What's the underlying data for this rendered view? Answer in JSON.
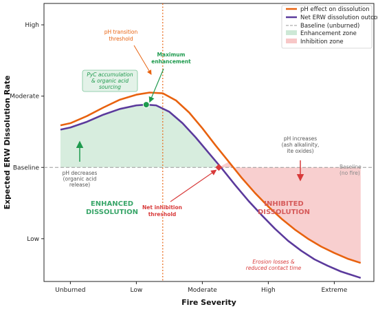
{
  "chart_data": {
    "type": "line",
    "title": "",
    "xlabel": "Fire Severity",
    "ylabel": "Expected ERW Dissolution Rate",
    "x_categories": [
      "Unburned",
      "Low",
      "Moderate",
      "High",
      "Extreme"
    ],
    "y_categories": [
      "Low",
      "Baseline",
      "Moderate",
      "High"
    ],
    "xlim": [
      -0.4,
      4.6
    ],
    "ylim": [
      -0.6,
      3.3
    ],
    "grid": false,
    "legend_position": "top-right",
    "baseline_value": 1,
    "series": [
      {
        "name": "pH effect on dissolution",
        "color": "#e8620f",
        "x": [
          -0.15,
          0.0,
          0.25,
          0.5,
          0.75,
          1.0,
          1.2,
          1.4,
          1.6,
          1.8,
          2.0,
          2.2,
          2.4,
          2.6,
          2.8,
          3.0,
          3.2,
          3.4,
          3.6,
          3.8,
          4.0,
          4.2,
          4.4
        ],
        "y": [
          1.59,
          1.62,
          1.72,
          1.84,
          1.95,
          2.02,
          2.05,
          2.04,
          1.94,
          1.77,
          1.55,
          1.31,
          1.08,
          0.85,
          0.64,
          0.45,
          0.28,
          0.13,
          0.0,
          -0.11,
          -0.2,
          -0.28,
          -0.34
        ]
      },
      {
        "name": "Net ERW dissolution outcome",
        "color": "#5b3a9c",
        "x": [
          -0.15,
          0.0,
          0.25,
          0.5,
          0.75,
          1.0,
          1.15,
          1.3,
          1.5,
          1.7,
          1.9,
          2.1,
          2.3,
          2.5,
          2.7,
          2.9,
          3.1,
          3.3,
          3.5,
          3.7,
          3.9,
          4.1,
          4.4
        ],
        "y": [
          1.53,
          1.56,
          1.64,
          1.74,
          1.82,
          1.87,
          1.88,
          1.87,
          1.78,
          1.62,
          1.42,
          1.2,
          0.98,
          0.75,
          0.53,
          0.33,
          0.14,
          -0.03,
          -0.17,
          -0.29,
          -0.38,
          -0.46,
          -0.55
        ]
      },
      {
        "name": "Baseline (unburned)",
        "color": "#999999",
        "x": [
          -0.4,
          4.6
        ],
        "y": [
          1,
          1
        ]
      }
    ],
    "zones": [
      {
        "name": "Enhancement zone",
        "color": "#cde8d6"
      },
      {
        "name": "Inhibition zone",
        "color": "#f7c7c7"
      }
    ],
    "ph_threshold_x": 1.4,
    "max_enhancement_point": {
      "x": 1.15,
      "y": 1.88
    },
    "net_inhibition_point": {
      "x": 2.25,
      "y": 1.0
    },
    "annotations": {
      "ph_threshold": [
        "pH transition",
        "threshold"
      ],
      "max_enhancement": [
        "Maximum",
        "enhancement"
      ],
      "pyc": [
        "PyC accumulation",
        "& organic acid",
        "sourcing"
      ],
      "ph_decreases": [
        "pH decreases",
        "(organic acid",
        "release)"
      ],
      "enhanced": [
        "ENHANCED",
        "DISSOLUTION"
      ],
      "net_inhibition": [
        "Net inhibition",
        "threshold"
      ],
      "ph_increases": [
        "pH increases",
        "(ash alkalinity,",
        "ite oxides)"
      ],
      "inhibited": [
        "INHIBITED",
        "DISSOLUTION"
      ],
      "erosion": [
        "Erosion losses &",
        "reduced contact time"
      ],
      "baseline_label": [
        "Baseline",
        "(no fire)"
      ]
    }
  }
}
